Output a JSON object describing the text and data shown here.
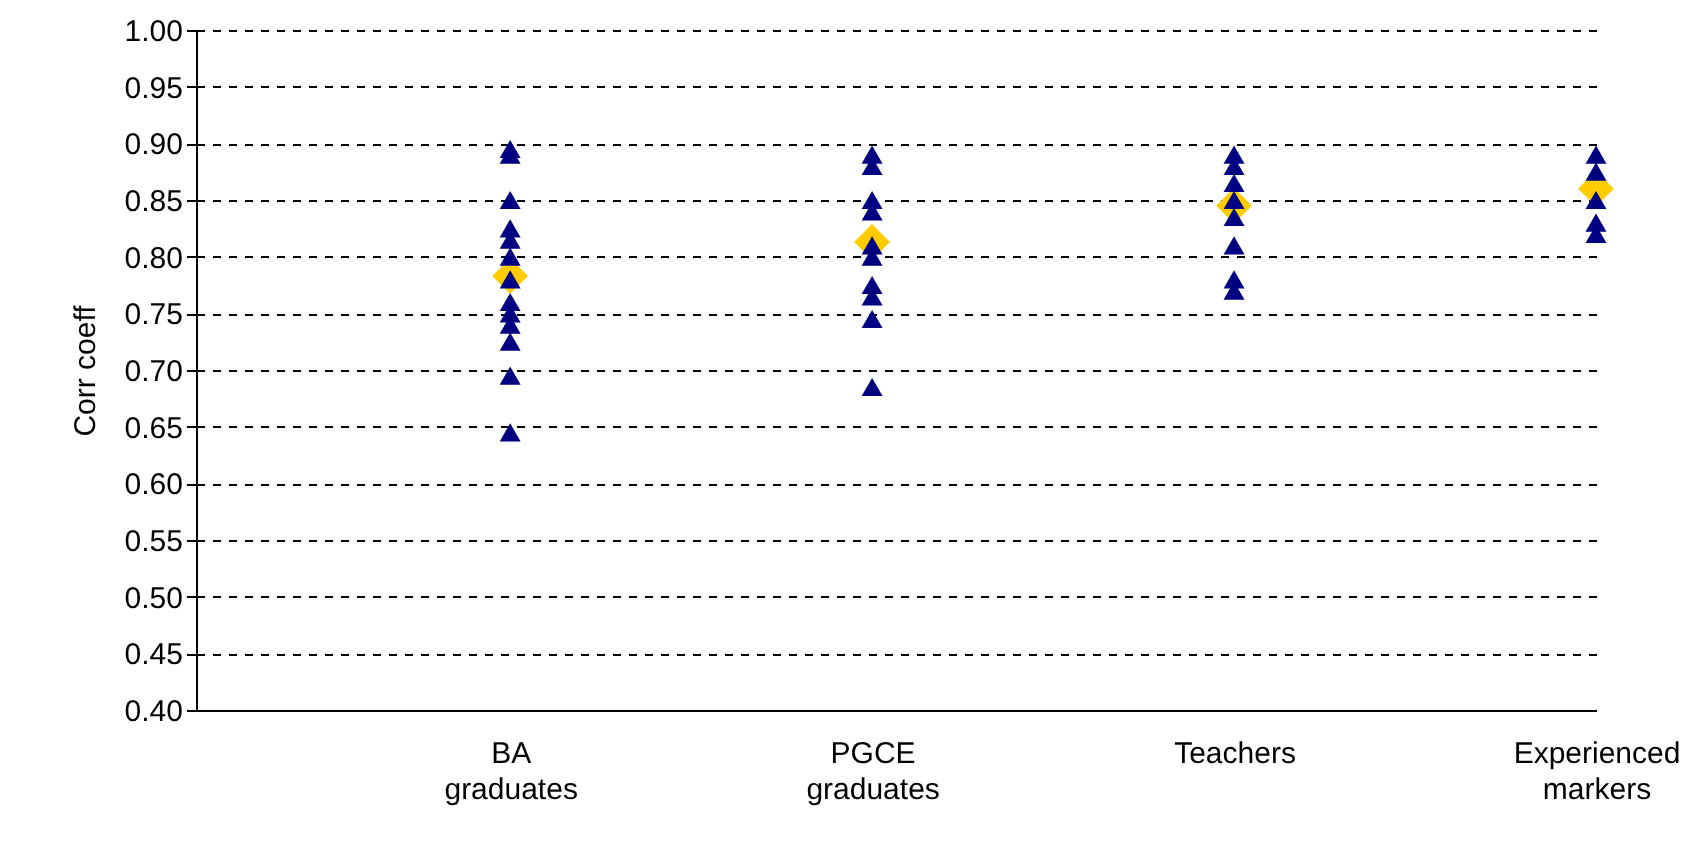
{
  "chart_data": {
    "type": "scatter",
    "ylabel": "Corr coeff",
    "categories": [
      "BA graduates",
      "PGCE graduates",
      "Teachers",
      "Experienced markers"
    ],
    "ylim": [
      0.4,
      1.0
    ],
    "yticks": [
      {
        "value": 0.4,
        "label": "0.40"
      },
      {
        "value": 0.45,
        "label": "0.45"
      },
      {
        "value": 0.5,
        "label": "0.50"
      },
      {
        "value": 0.55,
        "label": "0.55"
      },
      {
        "value": 0.6,
        "label": "0.60"
      },
      {
        "value": 0.65,
        "label": "0.65"
      },
      {
        "value": 0.7,
        "label": "0.70"
      },
      {
        "value": 0.75,
        "label": "0.75"
      },
      {
        "value": 0.8,
        "label": "0.80"
      },
      {
        "value": 0.85,
        "label": "0.85"
      },
      {
        "value": 0.9,
        "label": "0.90"
      },
      {
        "value": 0.95,
        "label": "0.95"
      },
      {
        "value": 1.0,
        "label": "1.00"
      }
    ],
    "grid": "y",
    "line_style": "dashed",
    "series": [
      {
        "color": "#000080",
        "marker": "triangle",
        "x": [
          "BA graduates",
          "BA graduates",
          "BA graduates",
          "BA graduates",
          "BA graduates",
          "BA graduates",
          "BA graduates",
          "BA graduates",
          "BA graduates",
          "BA graduates",
          "BA graduates",
          "BA graduates",
          "BA graduates",
          "PGCE graduates",
          "PGCE graduates",
          "PGCE graduates",
          "PGCE graduates",
          "PGCE graduates",
          "PGCE graduates",
          "PGCE graduates",
          "PGCE graduates",
          "PGCE graduates",
          "PGCE graduates",
          "Teachers",
          "Teachers",
          "Teachers",
          "Teachers",
          "Teachers",
          "Teachers",
          "Teachers",
          "Teachers",
          "Experienced markers",
          "Experienced markers",
          "Experienced markers",
          "Experienced markers",
          "Experienced markers"
        ],
        "values": [
          0.895,
          0.89,
          0.85,
          0.825,
          0.815,
          0.8,
          0.78,
          0.76,
          0.75,
          0.74,
          0.725,
          0.695,
          0.645,
          0.89,
          0.88,
          0.85,
          0.84,
          0.81,
          0.8,
          0.775,
          0.765,
          0.745,
          0.685,
          0.89,
          0.88,
          0.865,
          0.85,
          0.835,
          0.81,
          0.78,
          0.77,
          0.89,
          0.875,
          0.85,
          0.83,
          0.82
        ]
      },
      {
        "color": "#ffcc00",
        "marker": "diamond",
        "x": [
          "BA graduates",
          "PGCE graduates",
          "Teachers",
          "Experienced markers"
        ],
        "values": [
          0.783,
          0.813,
          0.845,
          0.86
        ]
      }
    ]
  }
}
